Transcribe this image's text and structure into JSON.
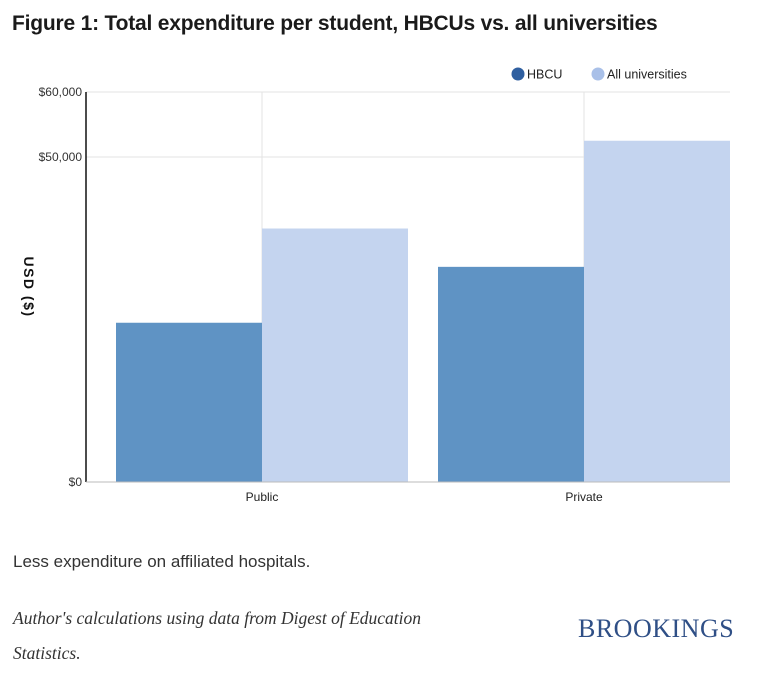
{
  "title": "Figure 1: Total expenditure per student, HBCUs vs. all universities",
  "note": "Less expenditure on affiliated hospitals.",
  "source": "Author's calculations using data from Digest of Education Statistics.",
  "logo": "BROOKINGS",
  "colors": {
    "hbcu": "#5f93c4",
    "all": "#c4d4ef",
    "grid": "#e3e3e3",
    "logo": "#2f4f86"
  },
  "chart_data": {
    "type": "bar",
    "categories": [
      "Public",
      "Private"
    ],
    "series": [
      {
        "name": "HBCU",
        "values": [
          24500,
          33100
        ]
      },
      {
        "name": "All universities",
        "values": [
          39000,
          52500
        ]
      }
    ],
    "ylabel": "USD ($)",
    "ylim": [
      0,
      60000
    ],
    "yticks": [
      {
        "value": 0,
        "label": "$0"
      },
      {
        "value": 50000,
        "label": "$50,000"
      },
      {
        "value": 60000,
        "label": "$60,000"
      }
    ],
    "legend": "top-right",
    "grid": true
  }
}
